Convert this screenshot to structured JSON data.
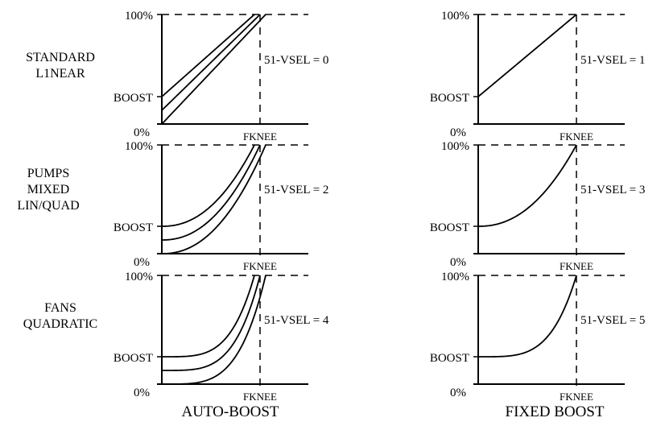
{
  "rows": [
    {
      "label_lines": [
        "STANDARD",
        "L1NEAR"
      ],
      "curve": "linear"
    },
    {
      "label_lines": [
        "PUMPS",
        "MIXED",
        "LIN/QUAD"
      ],
      "curve": "mixed"
    },
    {
      "label_lines": [
        "FANS",
        "QUADRATIC"
      ],
      "curve": "quadratic"
    }
  ],
  "columns": [
    {
      "title": "AUTO-BOOST",
      "mode": "auto"
    },
    {
      "title": "FIXED BOOST",
      "mode": "fixed"
    }
  ],
  "panels": [
    {
      "row": 0,
      "col": 0,
      "vsel_label": "51-VSEL =  0"
    },
    {
      "row": 0,
      "col": 1,
      "vsel_label": "51-VSEL = 1"
    },
    {
      "row": 1,
      "col": 0,
      "vsel_label": "51-VSEL = 2"
    },
    {
      "row": 1,
      "col": 1,
      "vsel_label": "51-VSEL = 3"
    },
    {
      "row": 2,
      "col": 0,
      "vsel_label": "51-VSEL = 4"
    },
    {
      "row": 2,
      "col": 1,
      "vsel_label": "51-VSEL = 5"
    }
  ],
  "axis_labels": {
    "top": "100%",
    "boost": "BOOST",
    "zero": "0%",
    "knee": "FKNEE"
  }
}
